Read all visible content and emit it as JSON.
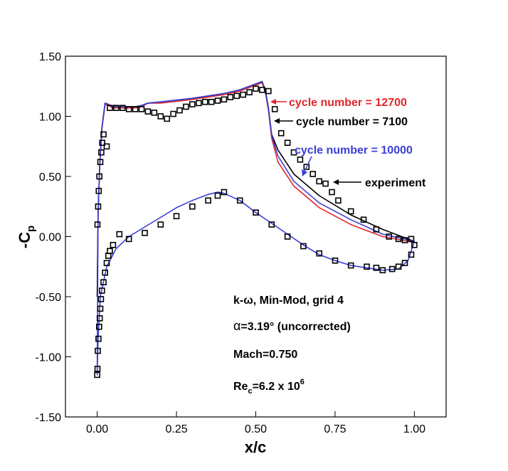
{
  "chart_data": {
    "type": "line",
    "xlabel": "x/c",
    "ylabel_main": "-C",
    "ylabel_sub": "p",
    "xlim": [
      -0.1,
      1.1
    ],
    "ylim": [
      -1.5,
      1.5
    ],
    "x_ticks": [
      0.0,
      0.25,
      0.5,
      0.75,
      1.0
    ],
    "x_tick_labels": [
      "0.00",
      "0.25",
      "0.50",
      "0.75",
      "1.00"
    ],
    "y_ticks": [
      -1.5,
      -1.0,
      -0.5,
      0.0,
      0.5,
      1.0,
      1.5
    ],
    "y_tick_labels": [
      "-1.50",
      "-1.00",
      "-0.50",
      "0.00",
      "0.50",
      "1.00",
      "1.50"
    ],
    "grid": false,
    "legend_position": "top-right, labels with arrows",
    "series": [
      {
        "name": "cycle number = 12700",
        "color": "#e3262b",
        "x": [
          1.0,
          0.9,
          0.8,
          0.7,
          0.62,
          0.57,
          0.55,
          0.54,
          0.53,
          0.52,
          0.45,
          0.4,
          0.3,
          0.2,
          0.16,
          0.14,
          0.12,
          0.1,
          0.07,
          0.05,
          0.035,
          0.025,
          0.015,
          0.008,
          0.003,
          0.0
        ],
        "y": [
          -0.05,
          0.0,
          0.1,
          0.24,
          0.42,
          0.62,
          0.82,
          1.05,
          1.2,
          1.28,
          1.21,
          1.18,
          1.14,
          1.11,
          1.11,
          1.08,
          1.07,
          1.07,
          1.07,
          1.07,
          1.09,
          1.1,
          0.9,
          0.6,
          0.2,
          -0.5
        ]
      },
      {
        "name": "cycle number = 7100",
        "color": "#000000",
        "x": [
          1.0,
          0.9,
          0.8,
          0.7,
          0.62,
          0.57,
          0.55,
          0.54,
          0.53,
          0.52,
          0.45,
          0.4,
          0.3,
          0.2,
          0.16,
          0.14,
          0.12,
          0.1,
          0.07,
          0.05,
          0.035,
          0.025,
          0.015,
          0.008,
          0.003,
          0.0
        ],
        "y": [
          -0.04,
          0.06,
          0.18,
          0.34,
          0.52,
          0.72,
          0.85,
          1.07,
          1.22,
          1.29,
          1.22,
          1.19,
          1.15,
          1.12,
          1.11,
          1.09,
          1.08,
          1.08,
          1.08,
          1.08,
          1.1,
          1.11,
          0.91,
          0.6,
          0.2,
          -0.5
        ]
      },
      {
        "name": "cycle number = 10000",
        "color": "#3a3fd6",
        "x": [
          1.0,
          0.9,
          0.8,
          0.7,
          0.62,
          0.57,
          0.55,
          0.54,
          0.53,
          0.52,
          0.45,
          0.4,
          0.3,
          0.2,
          0.16,
          0.14,
          0.12,
          0.1,
          0.07,
          0.05,
          0.035,
          0.025,
          0.015,
          0.008,
          0.003,
          0.0,
          0.003,
          0.01,
          0.03,
          0.06,
          0.1,
          0.15,
          0.2,
          0.25,
          0.3,
          0.35,
          0.38,
          0.4,
          0.45,
          0.5,
          0.55,
          0.6,
          0.65,
          0.7,
          0.75,
          0.8,
          0.85,
          0.9,
          0.95,
          0.98,
          1.0
        ],
        "y": [
          -0.04,
          0.02,
          0.14,
          0.28,
          0.46,
          0.67,
          0.84,
          1.06,
          1.21,
          1.29,
          1.22,
          1.19,
          1.15,
          1.12,
          1.11,
          1.09,
          1.08,
          1.08,
          1.08,
          1.08,
          1.1,
          1.11,
          0.91,
          0.6,
          0.2,
          -1.15,
          -0.85,
          -0.5,
          -0.25,
          -0.1,
          0.0,
          0.08,
          0.16,
          0.24,
          0.3,
          0.35,
          0.37,
          0.36,
          0.3,
          0.2,
          0.11,
          0.02,
          -0.07,
          -0.15,
          -0.2,
          -0.24,
          -0.26,
          -0.28,
          -0.27,
          -0.2,
          -0.04
        ]
      }
    ],
    "experiment": {
      "name": "experiment",
      "color": "#000000",
      "x": [
        0.0,
        0.001,
        0.002,
        0.004,
        0.006,
        0.008,
        0.01,
        0.012,
        0.015,
        0.02,
        0.025,
        0.03,
        0.035,
        0.04,
        0.05,
        0.07,
        0.1,
        0.15,
        0.2,
        0.25,
        0.3,
        0.35,
        0.38,
        0.4,
        0.45,
        0.5,
        0.55,
        0.6,
        0.65,
        0.7,
        0.75,
        0.8,
        0.85,
        0.88,
        0.9,
        0.93,
        0.95,
        0.97,
        0.99,
        1.0,
        0.001,
        0.003,
        0.005,
        0.007,
        0.01,
        0.013,
        0.016,
        0.02,
        0.03,
        0.04,
        0.06,
        0.08,
        0.1,
        0.12,
        0.14,
        0.16,
        0.18,
        0.2,
        0.22,
        0.24,
        0.26,
        0.28,
        0.3,
        0.32,
        0.34,
        0.36,
        0.38,
        0.4,
        0.42,
        0.44,
        0.46,
        0.48,
        0.5,
        0.52,
        0.54,
        0.56,
        0.58,
        0.6,
        0.62,
        0.64,
        0.66,
        0.68,
        0.7,
        0.72,
        0.74,
        0.76,
        0.8,
        0.84,
        0.88,
        0.92,
        0.95,
        0.97,
        0.99
      ],
      "y": [
        -1.15,
        -1.1,
        -0.95,
        -0.85,
        -0.75,
        -0.68,
        -0.6,
        -0.52,
        -0.45,
        -0.38,
        -0.3,
        -0.22,
        -0.16,
        -0.12,
        -0.07,
        0.02,
        -0.02,
        0.03,
        0.1,
        0.17,
        0.25,
        0.3,
        0.34,
        0.37,
        0.3,
        0.2,
        0.1,
        0.0,
        -0.08,
        -0.14,
        -0.2,
        -0.24,
        -0.25,
        -0.26,
        -0.28,
        -0.27,
        -0.25,
        -0.22,
        -0.15,
        -0.07,
        0.1,
        0.25,
        0.38,
        0.5,
        0.62,
        0.7,
        0.78,
        0.85,
        0.75,
        1.07,
        1.07,
        1.07,
        1.06,
        1.06,
        1.06,
        1.04,
        1.03,
        1.0,
        0.98,
        1.02,
        1.05,
        1.08,
        1.1,
        1.11,
        1.12,
        1.12,
        1.13,
        1.14,
        1.16,
        1.17,
        1.18,
        1.2,
        1.23,
        1.22,
        1.21,
        1.06,
        0.86,
        0.78,
        0.7,
        0.64,
        0.58,
        0.52,
        0.46,
        0.44,
        0.37,
        0.3,
        0.21,
        0.14,
        0.06,
        0.0,
        -0.02,
        -0.03,
        -0.02
      ]
    },
    "annotations": [
      {
        "text": "cycle number = 12700",
        "color": "#e3262b"
      },
      {
        "text": "cycle number = 7100",
        "color": "#000000"
      },
      {
        "text": "cycle number = 10000",
        "color": "#3a3fd6"
      },
      {
        "text": "experiment",
        "color": "#000000"
      }
    ],
    "notes": {
      "line1": "k-ω, Min-Mod, grid 4",
      "line2_alpha": "α",
      "line2_rest": "=3.19° (uncorrected)",
      "line3": "Mach=0.750",
      "line4_main": "Re",
      "line4_sub": "c",
      "line4_rest": "=6.2 x 10",
      "line4_sup": "6"
    }
  }
}
